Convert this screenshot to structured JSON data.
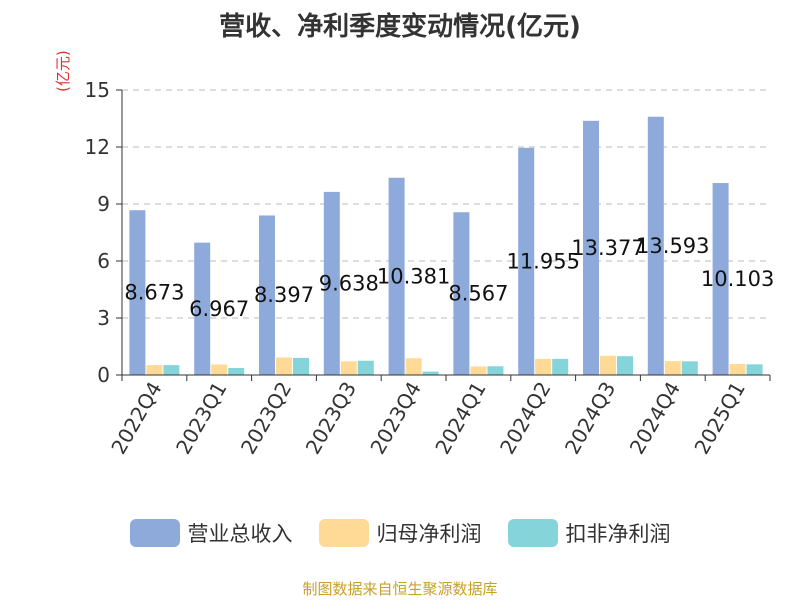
{
  "chart_data": {
    "type": "bar",
    "title": "营收、净利季度变动情况(亿元)",
    "ylabel": "(亿元)",
    "xlabel": "",
    "ylim": [
      0,
      15
    ],
    "yticks": [
      0,
      3,
      6,
      9,
      12,
      15
    ],
    "grid": true,
    "legend_position": "bottom",
    "categories": [
      "2022Q4",
      "2023Q1",
      "2023Q2",
      "2023Q3",
      "2023Q4",
      "2024Q1",
      "2024Q2",
      "2024Q3",
      "2024Q4",
      "2025Q1"
    ],
    "series": [
      {
        "name": "营业总收入",
        "color": "#8eaadb",
        "values": [
          8.673,
          6.967,
          8.397,
          9.638,
          10.381,
          8.567,
          11.955,
          13.377,
          13.593,
          10.103
        ],
        "labels": [
          "8.673",
          "6.967",
          "8.397",
          "9.638",
          "10.381",
          "8.567",
          "11.955",
          "13.377",
          "13.593",
          "10.103"
        ]
      },
      {
        "name": "归母净利润",
        "color": "#ffd996",
        "values": [
          0.52,
          0.55,
          0.92,
          0.72,
          0.88,
          0.45,
          0.85,
          1.01,
          0.73,
          0.58
        ]
      },
      {
        "name": "扣非净利润",
        "color": "#85d4d9",
        "values": [
          0.52,
          0.37,
          0.9,
          0.75,
          0.18,
          0.46,
          0.85,
          0.99,
          0.72,
          0.56
        ]
      }
    ]
  },
  "source": "制图数据来自恒生聚源数据库"
}
